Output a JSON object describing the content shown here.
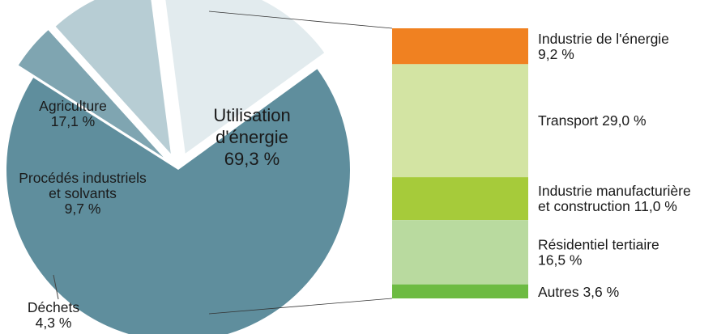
{
  "chart_data": {
    "type": "pie",
    "title": "",
    "main": {
      "slices": [
        {
          "label_lines": [
            "Utilisation",
            "d'énergie"
          ],
          "value_text": "69,3 %",
          "value": 69.3,
          "color": "#5f8e9d"
        },
        {
          "label_lines": [
            "Déchets"
          ],
          "value_text": "4,3 %",
          "value": 4.3,
          "color": "#7fa5b1"
        },
        {
          "label_lines": [
            "Procédés industriels",
            "et solvants"
          ],
          "value_text": "9,7 %",
          "value": 9.7,
          "color": "#b7cdd4"
        },
        {
          "label_lines": [
            "Agriculture"
          ],
          "value_text": "17,1 %",
          "value": 17.1,
          "color": "#e2ebee"
        }
      ]
    },
    "breakdown": {
      "type": "stacked-bar",
      "of": "Utilisation d'énergie",
      "segments": [
        {
          "label_lines": [
            "Industrie de l'énergie"
          ],
          "value_text": "9,2 %",
          "value": 9.2,
          "color": "#f08121"
        },
        {
          "label_lines": [
            "Transport"
          ],
          "value_text": "29,0 %",
          "value": 29.0,
          "color": "#d3e4a3",
          "inline_value": true
        },
        {
          "label_lines": [
            "Industrie manufacturière",
            "et construction"
          ],
          "value_text": "11,0 %",
          "value": 11.0,
          "color": "#a6cb3a",
          "inline_value": true
        },
        {
          "label_lines": [
            "Résidentiel tertiaire"
          ],
          "value_text": "16,5 %",
          "value": 16.5,
          "color": "#b9da9f"
        },
        {
          "label_lines": [
            "Autres"
          ],
          "value_text": "3,6 %",
          "value": 3.6,
          "color": "#6dbb42",
          "inline_value": true
        }
      ]
    }
  }
}
